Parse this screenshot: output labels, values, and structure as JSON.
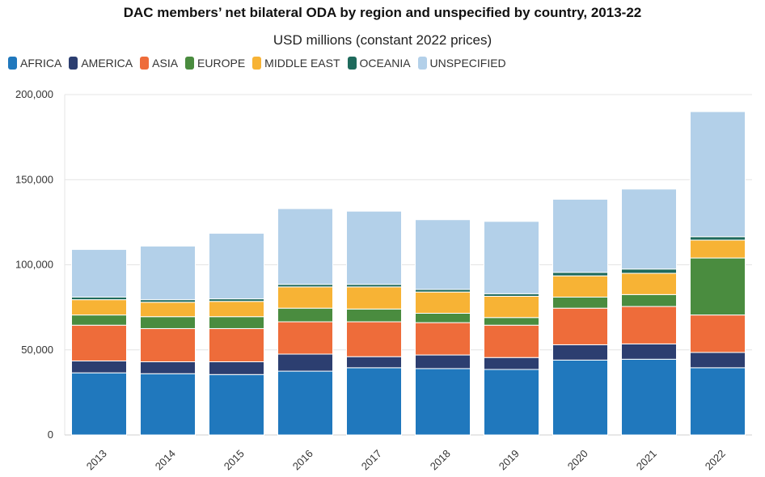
{
  "title": "DAC members’ net bilateral ODA by region and unspecified by country, 2013-22",
  "subtitle": "USD millions (constant 2022 prices)",
  "chart_data": {
    "type": "bar",
    "stacked": true,
    "title": "DAC members’ net bilateral ODA by region and unspecified by country, 2013-22",
    "subtitle": "USD millions (constant 2022 prices)",
    "categories": [
      "2013",
      "2014",
      "2015",
      "2016",
      "2017",
      "2018",
      "2019",
      "2020",
      "2021",
      "2022"
    ],
    "ylim": [
      0,
      200000
    ],
    "yticks": [
      {
        "value": 0,
        "label": "0"
      },
      {
        "value": 50000,
        "label": "50,000"
      },
      {
        "value": 100000,
        "label": "100,000"
      },
      {
        "value": 150000,
        "label": "150,000"
      },
      {
        "value": 200000,
        "label": "200,000"
      }
    ],
    "grid": true,
    "legend_position": "top-left",
    "series": [
      {
        "name": "AFRICA",
        "color": "#2078bd",
        "values": [
          36500,
          36000,
          35500,
          37500,
          39500,
          39000,
          38500,
          44000,
          44500,
          39500
        ]
      },
      {
        "name": "AMERICA",
        "color": "#2c3e70",
        "values": [
          7000,
          7000,
          7500,
          10000,
          6500,
          8000,
          7000,
          9000,
          9000,
          9000
        ]
      },
      {
        "name": "ASIA",
        "color": "#ee6c3a",
        "values": [
          21000,
          19500,
          19500,
          19000,
          20500,
          19000,
          19000,
          21500,
          22000,
          22000
        ]
      },
      {
        "name": "EUROPE",
        "color": "#4a8c3f",
        "values": [
          6000,
          7000,
          7000,
          8000,
          7500,
          5500,
          4500,
          6500,
          7000,
          33500
        ]
      },
      {
        "name": "MIDDLE EAST",
        "color": "#f7b335",
        "values": [
          9000,
          8500,
          9000,
          12500,
          13000,
          12500,
          12500,
          12500,
          12500,
          10500
        ]
      },
      {
        "name": "OCEANIA",
        "color": "#1e6a5c",
        "values": [
          1500,
          1500,
          1500,
          1500,
          1500,
          1500,
          1500,
          2000,
          2500,
          2000
        ]
      },
      {
        "name": "UNSPECIFIED",
        "color": "#b3d0e9",
        "values": [
          28000,
          31500,
          38500,
          44500,
          43000,
          41000,
          42500,
          43000,
          47000,
          73500
        ]
      }
    ]
  }
}
